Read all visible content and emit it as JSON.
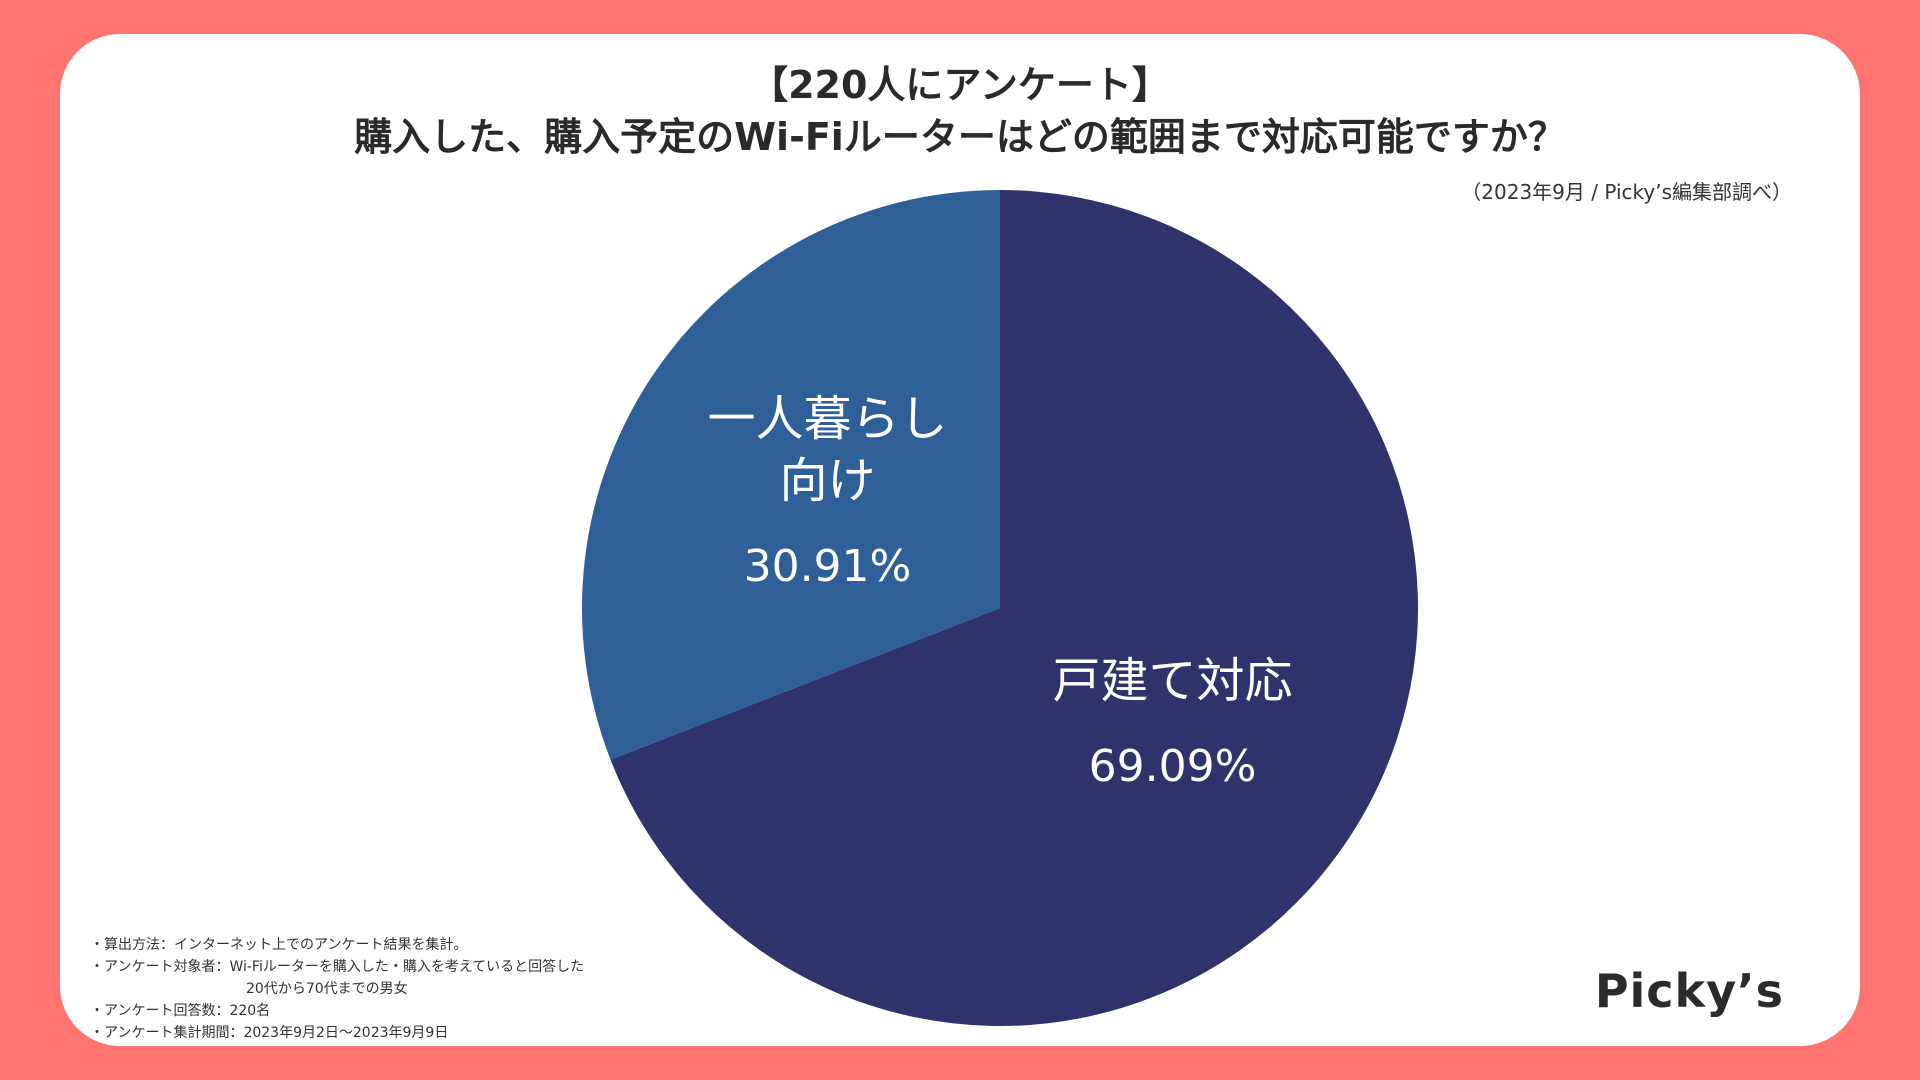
{
  "title_line1": "【220人にアンケート】",
  "title_line2": "購入した、購入予定のWi-Fiルーターはどの範囲まで対応可能ですか？",
  "source": "（2023年9月 / Picky’s編集部調べ）",
  "chart_data": {
    "type": "pie",
    "categories": [
      "戸建て対応",
      "一人暮らし向け"
    ],
    "values": [
      69.09,
      30.91
    ],
    "value_labels": [
      "69.09%",
      "30.91%"
    ],
    "label_lines": [
      [
        "戸建て対応"
      ],
      [
        "一人暮らし",
        "向け"
      ]
    ],
    "colors": [
      "#2f336b",
      "#2f5f97"
    ],
    "start_angle_deg": 0,
    "direction": "clockwise"
  },
  "notes": {
    "method": "・算出方法：インターネット上でのアンケート結果を集計。",
    "target_line1": "・アンケート対象者：Wi-Fiルーターを購入した・購入を考えていると回答した",
    "target_line2": "20代から70代までの男女",
    "count": "・アンケート回答数：220名",
    "period": "・アンケート集計期間：2023年9月2日～2023年9月9日"
  },
  "logo": "Picky’s",
  "colors": {
    "background": "#ff7470",
    "card": "#ffffff",
    "text": "#2a2a2a"
  }
}
